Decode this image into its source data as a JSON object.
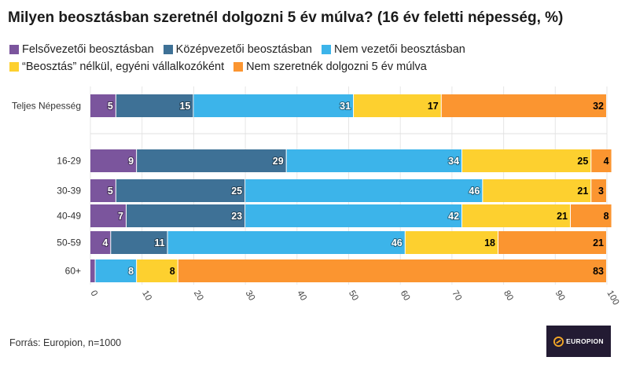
{
  "title": "Milyen beosztásban szeretnél dolgozni 5 év múlva? (16 év feletti népesség, %)",
  "legend": [
    {
      "label": "Felsővezetői beosztásban",
      "color": "#7b559d"
    },
    {
      "label": "Középvezetői beosztásban",
      "color": "#3e7196"
    },
    {
      "label": "Nem  vezetői beosztásban",
      "color": "#3cb4ea"
    },
    {
      "label": "“Beosztás” nélkül, egyéni vállalkozóként",
      "color": "#fdd02f"
    },
    {
      "label": "Nem szeretnék dolgozni 5 év múlva",
      "color": "#fb9530"
    }
  ],
  "source": "Forrás: Europion, n=1000",
  "logo": {
    "text": "EUROPION",
    "icon": "europion-logo-icon"
  },
  "chart_data": {
    "type": "bar",
    "orientation": "horizontal",
    "stacked": true,
    "title": "Milyen beosztásban szeretnél dolgozni 5 év múlva? (16 év feletti népesség, %)",
    "categories": [
      "Teljes Népesség",
      "16-29",
      "30-39",
      "40-49",
      "50-59",
      "60+"
    ],
    "series": [
      {
        "name": "Felsővezetői beosztásban",
        "color": "#7b559d",
        "values": [
          5,
          9,
          5,
          7,
          4,
          1
        ],
        "labels": [
          "5",
          "9",
          "5",
          "7",
          "4",
          ""
        ]
      },
      {
        "name": "Középvezetői beosztásban",
        "color": "#3e7196",
        "values": [
          15,
          29,
          25,
          23,
          11,
          0
        ],
        "labels": [
          "15",
          "29",
          "25",
          "23",
          "11",
          ""
        ]
      },
      {
        "name": "Nem  vezetői beosztásban",
        "color": "#3cb4ea",
        "values": [
          31,
          34,
          46,
          42,
          46,
          8
        ],
        "labels": [
          "31",
          "34",
          "46",
          "42",
          "46",
          "8"
        ]
      },
      {
        "name": "“Beosztás” nélkül, egyéni vállalkozóként",
        "color": "#fdd02f",
        "values": [
          17,
          25,
          21,
          21,
          18,
          8
        ],
        "labels": [
          "17",
          "25",
          "21",
          "21",
          "18",
          "8"
        ]
      },
      {
        "name": "Nem szeretnék dolgozni 5 év múlva",
        "color": "#fb9530",
        "values": [
          32,
          4,
          3,
          8,
          21,
          83
        ],
        "labels": [
          "32",
          "4",
          "3",
          "8",
          "21",
          "83"
        ]
      }
    ],
    "xlim": [
      0,
      100
    ],
    "xticks": [
      "0",
      "10",
      "20",
      "30",
      "40",
      "50",
      "60",
      "70",
      "80",
      "90",
      "100"
    ],
    "xlabel": "",
    "ylabel": "",
    "grid": true,
    "legend_position": "top"
  }
}
